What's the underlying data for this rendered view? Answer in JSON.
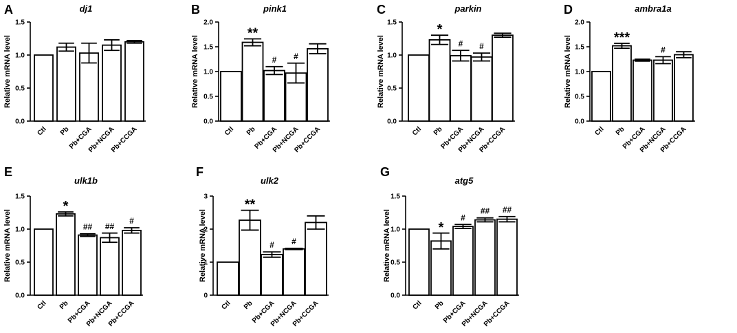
{
  "figure": {
    "background": "#ffffff",
    "bar_fill": "#ffffff",
    "stroke": "#000000"
  },
  "chart_data": [
    {
      "panel": "A",
      "type": "bar",
      "title": "dj1",
      "ylabel": "Relative mRNA level",
      "categories": [
        "Ctl",
        "Pb",
        "Pb+CGA",
        "Pb+NCGA",
        "Pb+CCGA"
      ],
      "values": [
        1.0,
        1.12,
        1.03,
        1.15,
        1.2
      ],
      "errors": [
        0.0,
        0.06,
        0.15,
        0.08,
        0.02
      ],
      "annotations": [
        "",
        "",
        "",
        "",
        ""
      ],
      "ylim": [
        0,
        1.5
      ],
      "yticks": [
        "0.0",
        "0.5",
        "1.0",
        "1.5"
      ]
    },
    {
      "panel": "B",
      "type": "bar",
      "title": "pink1",
      "ylabel": "Relative mRNA level",
      "categories": [
        "Ctl",
        "Pb",
        "Pb+CGA",
        "Pb+NCGA",
        "Pb+CCGA"
      ],
      "values": [
        1.0,
        1.59,
        1.02,
        0.97,
        1.46
      ],
      "errors": [
        0.0,
        0.07,
        0.08,
        0.2,
        0.1
      ],
      "annotations": [
        "",
        "**",
        "#",
        "#",
        ""
      ],
      "ylim": [
        0,
        2.0
      ],
      "yticks": [
        "0.0",
        "0.5",
        "1.0",
        "1.5",
        "2.0"
      ]
    },
    {
      "panel": "C",
      "type": "bar",
      "title": "parkin",
      "ylabel": "Relative mRNA level",
      "categories": [
        "Ctl",
        "Pb",
        "Pb+CGA",
        "Pb+NCGA",
        "Pb+CCGA"
      ],
      "values": [
        1.0,
        1.23,
        0.99,
        0.97,
        1.3
      ],
      "errors": [
        0.0,
        0.07,
        0.08,
        0.06,
        0.03
      ],
      "annotations": [
        "",
        "*",
        "#",
        "#",
        ""
      ],
      "ylim": [
        0,
        1.5
      ],
      "yticks": [
        "0.0",
        "0.5",
        "1.0",
        "1.5"
      ]
    },
    {
      "panel": "D",
      "type": "bar",
      "title": "ambra1a",
      "ylabel": "Relative mRNA level",
      "categories": [
        "Ctl",
        "Pb",
        "Pb+CGA",
        "Pb+NCGA",
        "Pb+CCGA"
      ],
      "values": [
        1.0,
        1.52,
        1.23,
        1.23,
        1.34
      ],
      "errors": [
        0.0,
        0.05,
        0.02,
        0.07,
        0.06
      ],
      "annotations": [
        "",
        "***",
        "",
        "#",
        ""
      ],
      "ylim": [
        0,
        2.0
      ],
      "yticks": [
        "0.0",
        "0.5",
        "1.0",
        "1.5",
        "2.0"
      ]
    },
    {
      "panel": "E",
      "type": "bar",
      "title": "ulk1b",
      "ylabel": "Relative mRNA level",
      "categories": [
        "Ctl",
        "Pb",
        "Pb+CGA",
        "Pb+NCGA",
        "Pb+CCGA"
      ],
      "values": [
        1.0,
        1.23,
        0.91,
        0.87,
        0.98
      ],
      "errors": [
        0.0,
        0.03,
        0.02,
        0.07,
        0.04
      ],
      "annotations": [
        "",
        "*",
        "##",
        "##",
        "#"
      ],
      "ylim": [
        0,
        1.5
      ],
      "yticks": [
        "0.0",
        "0.5",
        "1.0",
        "1.5"
      ]
    },
    {
      "panel": "F",
      "type": "bar",
      "title": "ulk2",
      "ylabel": "Relative mRNA level",
      "categories": [
        "Ctl",
        "Pb",
        "Pb+CGA",
        "Pb+NCGA",
        "Pb+CCGA"
      ],
      "values": [
        1.0,
        2.27,
        1.23,
        1.4,
        2.2
      ],
      "errors": [
        0.0,
        0.3,
        0.08,
        0.02,
        0.2
      ],
      "annotations": [
        "",
        "**",
        "#",
        "#",
        ""
      ],
      "ylim": [
        0,
        3
      ],
      "yticks": [
        "0",
        "1",
        "2",
        "3"
      ]
    },
    {
      "panel": "G",
      "type": "bar",
      "title": "atg5",
      "ylabel": "Relative mRNA level",
      "categories": [
        "Ctl",
        "Pb",
        "Pb+CGA",
        "Pb+NCGA",
        "Pb+CCGA"
      ],
      "values": [
        1.0,
        0.82,
        1.04,
        1.14,
        1.15
      ],
      "errors": [
        0.0,
        0.12,
        0.03,
        0.03,
        0.04
      ],
      "annotations": [
        "",
        "*",
        "#",
        "##",
        "##"
      ],
      "ylim": [
        0,
        1.5
      ],
      "yticks": [
        "0.0",
        "0.5",
        "1.0",
        "1.5"
      ]
    }
  ]
}
